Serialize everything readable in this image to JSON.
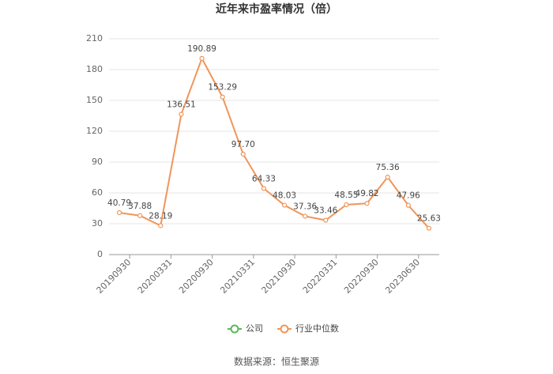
{
  "chart_data": {
    "type": "line",
    "title": "近年来市盈率情况（倍）",
    "categories": [
      "20190930",
      null,
      "20200331",
      null,
      "20200930",
      null,
      "20210331",
      null,
      "20210930",
      null,
      "20220331",
      null,
      "20220930",
      null,
      "20230630",
      null
    ],
    "series": [
      {
        "name": "公司",
        "color": "#5cb85c",
        "values": [
          null,
          null,
          null,
          null,
          null,
          null,
          null,
          null,
          null,
          null,
          null,
          null,
          null,
          null,
          null,
          null
        ]
      },
      {
        "name": "行业中位数",
        "color": "#f0955a",
        "values": [
          40.79,
          37.88,
          28.19,
          136.51,
          190.89,
          153.29,
          97.7,
          64.33,
          48.03,
          37.36,
          33.46,
          48.55,
          49.82,
          75.36,
          47.96,
          25.63
        ],
        "value_labels": [
          "40.79",
          "37.88",
          "28.19",
          "136.51",
          "190.89",
          "153.29",
          "97.70",
          "64.33",
          "48.03",
          "37.36",
          "33.46",
          "48.55",
          "49.82",
          "75.36",
          "47.96",
          "25.63"
        ]
      }
    ],
    "ylim": [
      0,
      210
    ],
    "yticks": [
      0,
      30,
      60,
      90,
      120,
      150,
      180,
      210
    ],
    "grid": true,
    "source": "数据来源：恒生聚源"
  }
}
